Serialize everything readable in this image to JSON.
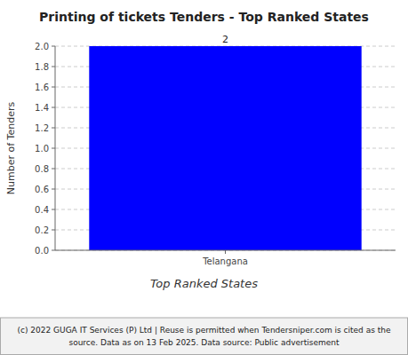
{
  "chart_data": {
    "type": "bar",
    "title": "Printing of tickets Tenders - Top Ranked States",
    "categories": [
      "Telangana"
    ],
    "values": [
      2
    ],
    "color": "#0000FF",
    "ylabel": "Number of Tenders",
    "xlabel": "Top Ranked States",
    "ylim": [
      0,
      2.0
    ],
    "yticks": [
      {
        "value": 0,
        "label": "0.0"
      },
      0.2,
      0.4,
      0.6,
      0.8,
      {
        "value": 1,
        "label": "1.0"
      },
      1.2,
      1.4,
      1.6,
      1.8,
      {
        "value": 2,
        "label": "2.0"
      }
    ],
    "grid": true,
    "data_labels": true,
    "annotations": [
      "(c) 2022 GUGA IT Services (P) Ltd | Reuse is permitted when Tendersniper.com is cited as the",
      "source. Data as on 13 Feb 2025. Data source: Public advertisement"
    ]
  }
}
